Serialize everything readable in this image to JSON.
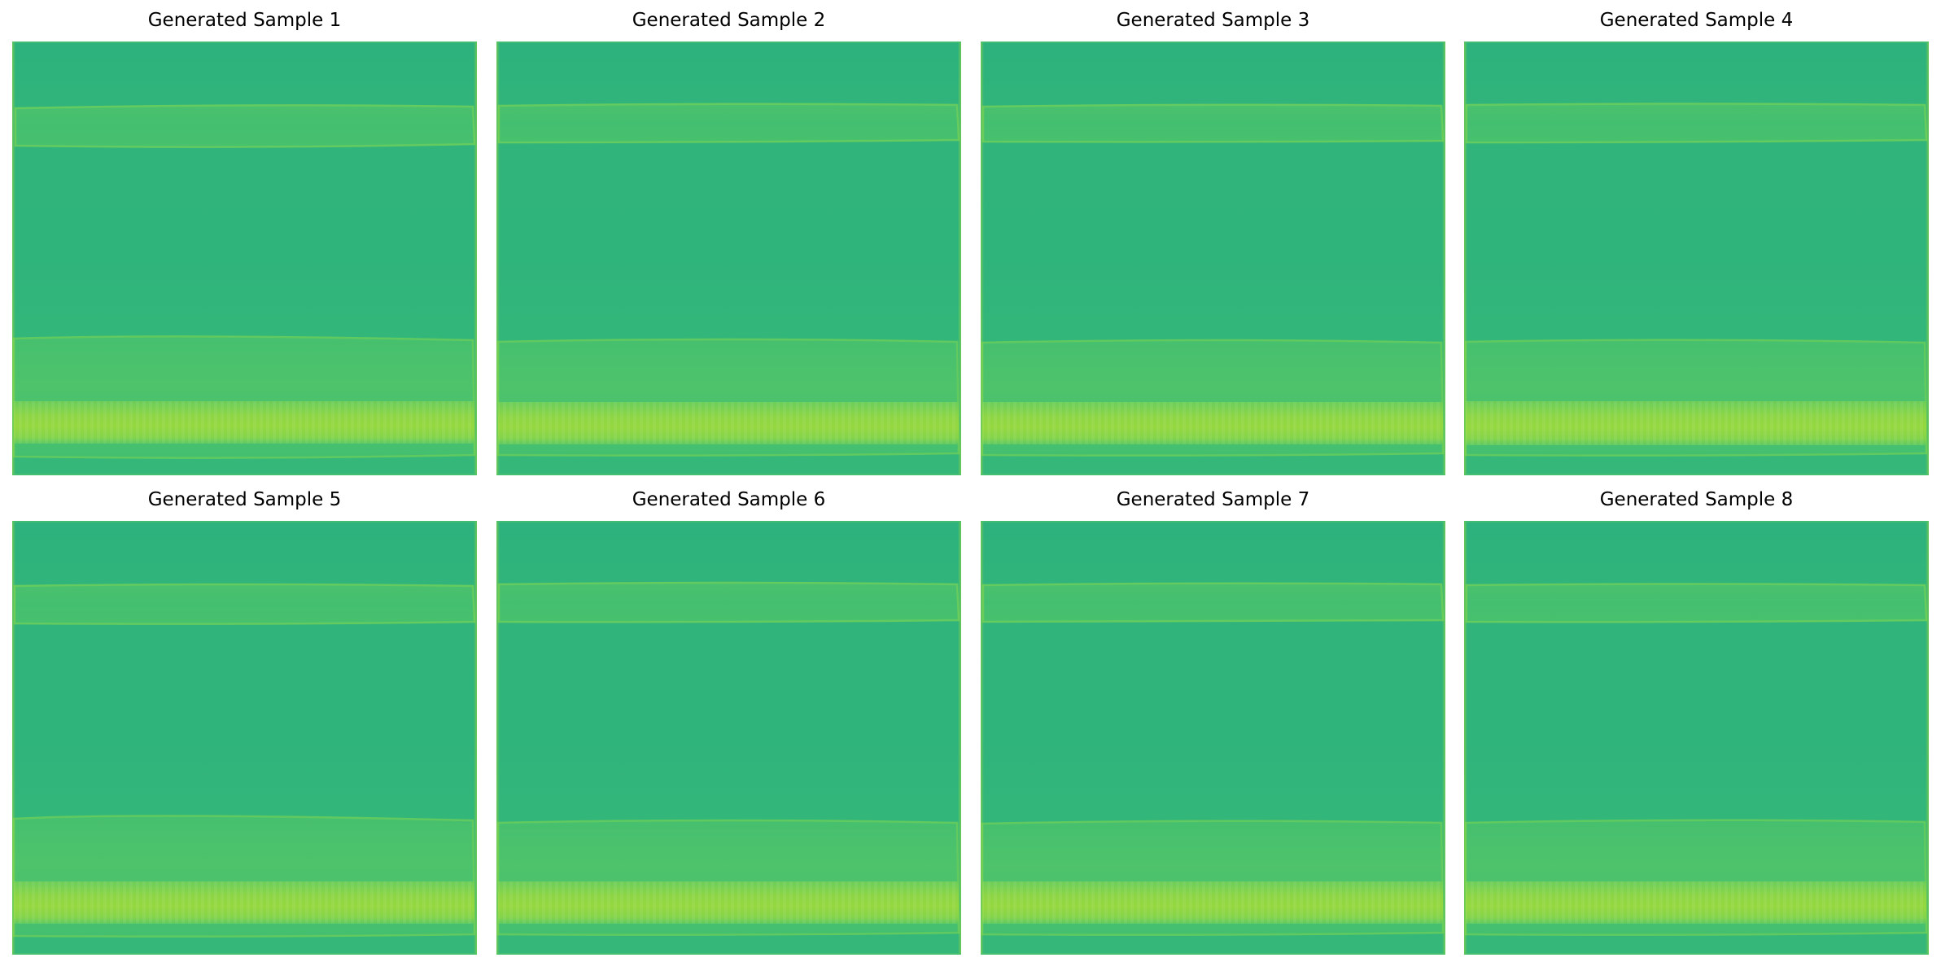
{
  "samples": [
    {
      "title": "Generated Sample 1"
    },
    {
      "title": "Generated Sample 2"
    },
    {
      "title": "Generated Sample 3"
    },
    {
      "title": "Generated Sample 4"
    },
    {
      "title": "Generated Sample 5"
    },
    {
      "title": "Generated Sample 6"
    },
    {
      "title": "Generated Sample 7"
    },
    {
      "title": "Generated Sample 8"
    }
  ],
  "colors": {
    "background_green": "#2fb47c",
    "band_green": "#47c16e",
    "band_edge": "#5ec962",
    "bright_band": "#86d549",
    "bright_band_center": "#95d840",
    "border_edge": "#a0da39"
  }
}
